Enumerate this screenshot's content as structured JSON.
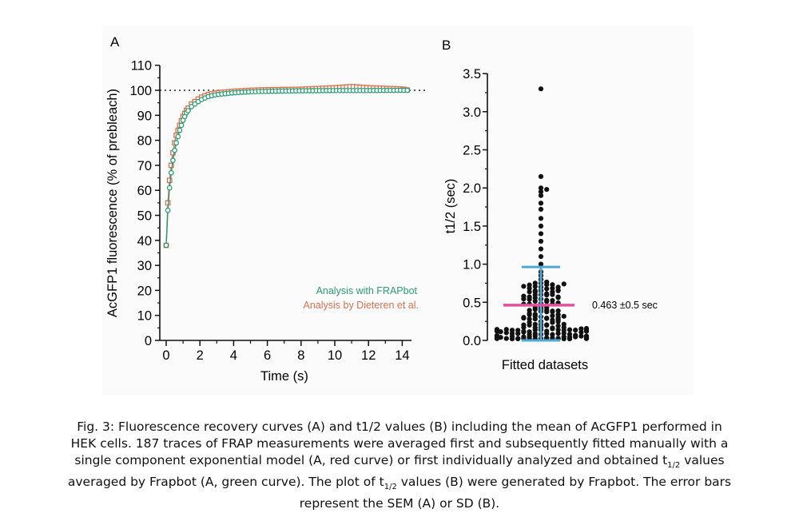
{
  "chart_data": [
    {
      "panel": "A",
      "type": "scatter",
      "xlabel": "Time (s)",
      "ylabel": "AcGFP1 fluorescence (% of prebleach)",
      "xlim": [
        0,
        15
      ],
      "ylim": [
        0,
        110
      ],
      "xticks": [
        "0",
        "2",
        "4",
        "6",
        "8",
        "10",
        "12",
        "14"
      ],
      "yticks": [
        "0",
        "10",
        "20",
        "30",
        "40",
        "50",
        "60",
        "70",
        "80",
        "90",
        "100",
        "110"
      ],
      "reference_line": {
        "y": 100,
        "style": "dotted"
      },
      "legend_position": "bottom-right",
      "grid": false,
      "series": [
        {
          "name": "Analysis with FRAPbot",
          "color": "#2a9d74",
          "marker": "circle",
          "points": [
            [
              0,
              38
            ],
            [
              0.1,
              52
            ],
            [
              0.2,
              61
            ],
            [
              0.3,
              67
            ],
            [
              0.4,
              72
            ],
            [
              0.5,
              76
            ],
            [
              0.6,
              79
            ],
            [
              0.8,
              84
            ],
            [
              1.0,
              88
            ],
            [
              1.2,
              91
            ],
            [
              1.5,
              93.5
            ],
            [
              2.0,
              96
            ],
            [
              2.5,
              97.5
            ],
            [
              3.0,
              98.3
            ],
            [
              4.0,
              99
            ],
            [
              5.0,
              99.4
            ],
            [
              6.0,
              99.6
            ],
            [
              8.0,
              99.8
            ],
            [
              10.0,
              99.9
            ],
            [
              12.0,
              99.9
            ],
            [
              14.0,
              100
            ],
            [
              14.4,
              100
            ]
          ]
        },
        {
          "name": "Analysis by Dieteren et al.",
          "color": "#d9714f",
          "marker": "square",
          "points": [
            [
              0,
              38
            ],
            [
              0.1,
              55
            ],
            [
              0.2,
              64
            ],
            [
              0.3,
              70
            ],
            [
              0.4,
              75
            ],
            [
              0.5,
              79
            ],
            [
              0.6,
              82
            ],
            [
              0.8,
              86
            ],
            [
              1.0,
              89.5
            ],
            [
              1.2,
              92
            ],
            [
              1.5,
              94.5
            ],
            [
              2.0,
              97
            ],
            [
              2.5,
              98.3
            ],
            [
              3.0,
              99
            ],
            [
              4.0,
              99.6
            ],
            [
              5.0,
              100
            ],
            [
              6.0,
              100.2
            ],
            [
              8.0,
              100.4
            ],
            [
              10.0,
              101
            ],
            [
              11.0,
              101.5
            ],
            [
              12.0,
              101
            ],
            [
              14.0,
              100.5
            ],
            [
              14.4,
              100
            ]
          ]
        }
      ]
    },
    {
      "panel": "B",
      "type": "scatter",
      "ylabel": "t1/2 (sec)",
      "xlabel": "Fitted datasets",
      "ylim": [
        0,
        3.5
      ],
      "yticks": [
        "0.0",
        "0.5",
        "1.0",
        "1.5",
        "2.0",
        "2.5",
        "3.0",
        "3.5"
      ],
      "n_points": 187,
      "mean": 0.463,
      "sd": 0.5,
      "mean_label": "0.463 ±0.5 sec",
      "mean_color": "#e0529c",
      "errorbar_color": "#4fa8d6",
      "notable_values": [
        3.3,
        2.15,
        2.0,
        1.98,
        1.95,
        1.9,
        1.8,
        1.72,
        1.6,
        1.5,
        1.4,
        1.3,
        1.2,
        1.1,
        1.0,
        0.9,
        0.85,
        0.8,
        0.75,
        0.7,
        0.65,
        0.6
      ]
    }
  ],
  "caption": {
    "line1": "Fig. 3: Fluorescence recovery curves (A) and t1/2 values (B) including the mean of AcGFP1 performed in",
    "line2": "HEK cells. 187 traces of FRAP measurements were averaged first and subsequently fitted manually with a",
    "line3a": "single component exponential model (A, red curve) or first individually analyzed and obtained t",
    "line3sub": "1/2",
    "line3b": " values",
    "line4a": "averaged by Frapbot (A, green curve). The plot of t",
    "line4sub": "1/2",
    "line4b": " values (B) were generated by Frapbot. The error bars",
    "line5": "represent the SEM (A) or SD (B)."
  }
}
